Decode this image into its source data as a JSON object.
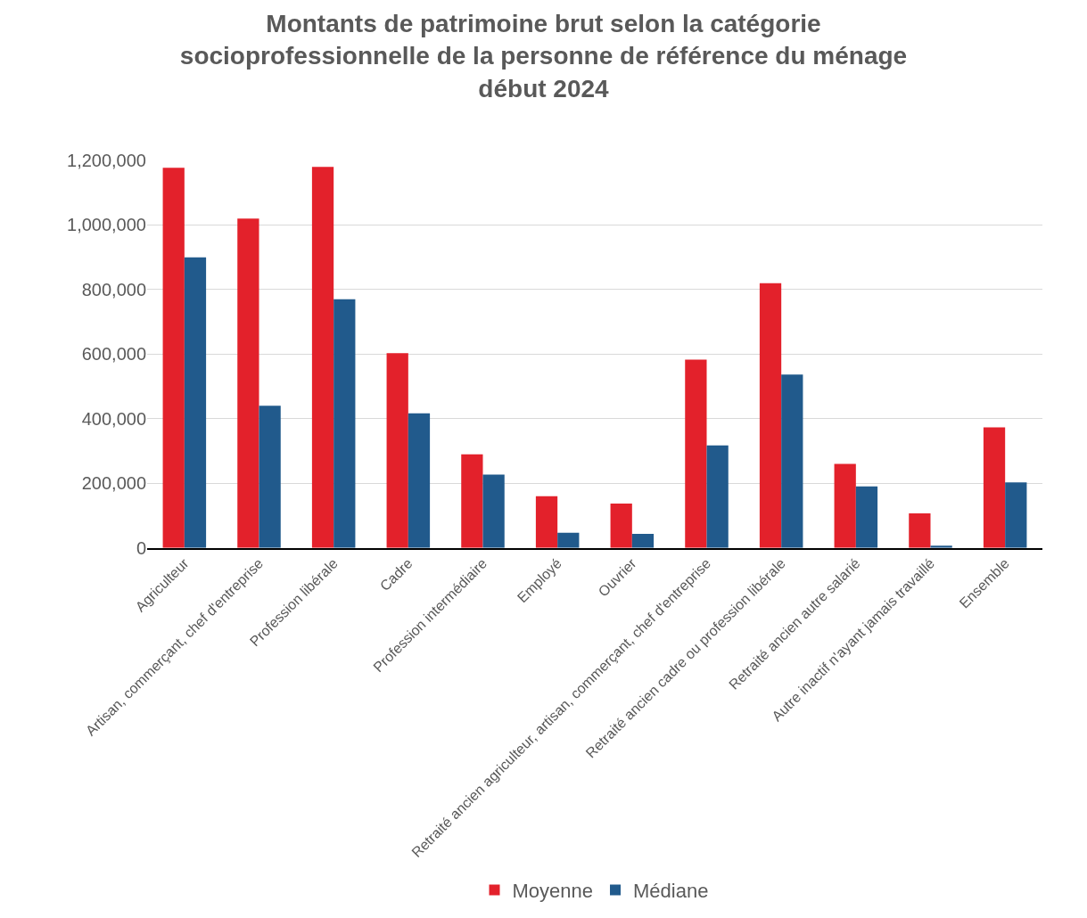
{
  "chart_data": {
    "type": "bar",
    "title": "Montants de patrimoine brut selon la catégorie\nsocioprofessionnelle de la personne de référence du ménage\ndébut 2024",
    "categories": [
      "Agriculteur",
      "Artisan, commerçant, chef d'entreprise",
      "Profession libérale",
      "Cadre",
      "Profession intermédiaire",
      "Employé",
      "Ouvrier",
      "Retraité ancien agriculteur, artisan, commerçant, chef d'entreprise",
      "Retraité ancien cadre ou profession libérale",
      "Retraité ancien autre salarié",
      "Autre inactif n'ayant jamais travaillé",
      "Ensemble"
    ],
    "series": [
      {
        "name": "Moyenne",
        "color": "#e3212b",
        "values": [
          1177000,
          1020000,
          1180000,
          603000,
          290000,
          160000,
          137000,
          583000,
          820000,
          260000,
          107000,
          373000
        ]
      },
      {
        "name": "Médiane",
        "color": "#215a8c",
        "values": [
          900000,
          440000,
          770000,
          417000,
          227000,
          47000,
          43000,
          317000,
          537000,
          190000,
          7000,
          203000
        ]
      }
    ],
    "ylim": [
      0,
      1200000
    ],
    "yticks": [
      {
        "value": 0,
        "label": "0"
      },
      {
        "value": 200000,
        "label": "200,000"
      },
      {
        "value": 400000,
        "label": "400,000"
      },
      {
        "value": 600000,
        "label": "600,000"
      },
      {
        "value": 800000,
        "label": "800,000"
      },
      {
        "value": 1000000,
        "label": "1,000,000"
      },
      {
        "value": 1200000,
        "label": "1,200,000"
      }
    ],
    "grid": "y",
    "legend": "bottom"
  }
}
